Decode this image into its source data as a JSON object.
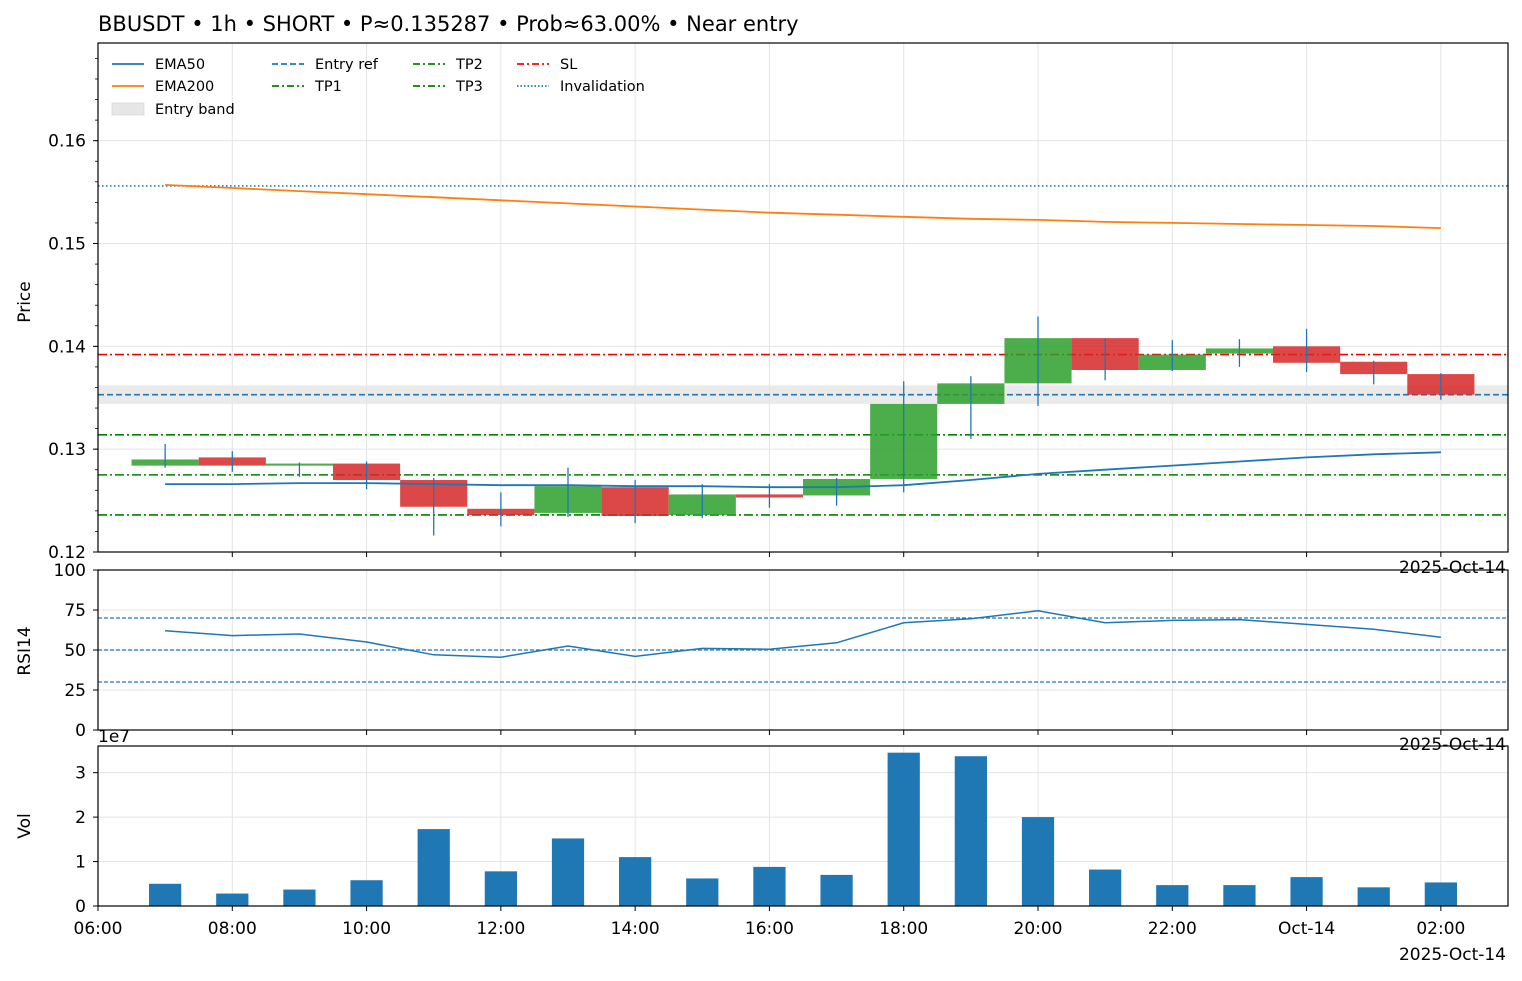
{
  "title": "BBUSDT • 1h • SHORT • P≈0.135287 • Prob≈63.00% • Near entry",
  "colors": {
    "ema50": "#1f77b4",
    "ema200": "#ff7f0e",
    "up": "#2ca02c",
    "down": "#d62728",
    "wick": "#1f77b4",
    "entry": "#1f77b4",
    "tp": "#008000",
    "sl": "#ff0000",
    "band": "#e6e6e6",
    "volume": "#1f77b4"
  },
  "chart_data": [
    {
      "panel": "price",
      "type": "candlestick",
      "ylabel": "Price",
      "ylim": [
        0.12,
        0.1695
      ],
      "yticks": [
        "0.12",
        "0.13",
        "0.14",
        "0.15",
        "0.16"
      ],
      "xlim": [
        "06:00",
        "03:00"
      ],
      "grid": true,
      "corner_label": "2025-Oct-14",
      "legend": {
        "position": "top-left",
        "entries": [
          {
            "label": "EMA50",
            "style": "solid",
            "color": "#1f77b4"
          },
          {
            "label": "Entry ref",
            "style": "dashed",
            "color": "#1f77b4"
          },
          {
            "label": "TP2",
            "style": "dashdot",
            "color": "#008000"
          },
          {
            "label": "SL",
            "style": "dashdot",
            "color": "#ff0000"
          },
          {
            "label": "EMA200",
            "style": "solid",
            "color": "#ff7f0e"
          },
          {
            "label": "TP1",
            "style": "dashdot",
            "color": "#008000"
          },
          {
            "label": "TP3",
            "style": "dashdot",
            "color": "#008000"
          },
          {
            "label": "Invalidation",
            "style": "dotted",
            "color": "#1f77b4"
          },
          {
            "label": "Entry band",
            "style": "band",
            "color": "#e6e6e6"
          }
        ]
      },
      "levels": {
        "entry_ref": 0.1353,
        "entry_band": [
          0.1344,
          0.1362
        ],
        "tp1": 0.1314,
        "tp2": 0.1275,
        "tp3": 0.1236,
        "sl": 0.1392,
        "invalidation": 0.1556
      },
      "candles": [
        {
          "t": "07:00",
          "o": 0.1284,
          "h": 0.1305,
          "l": 0.1282,
          "c": 0.129
        },
        {
          "t": "08:00",
          "o": 0.1292,
          "h": 0.1298,
          "l": 0.1278,
          "c": 0.1284
        },
        {
          "t": "09:00",
          "o": 0.1284,
          "h": 0.1287,
          "l": 0.1273,
          "c": 0.1286
        },
        {
          "t": "10:00",
          "o": 0.1286,
          "h": 0.1288,
          "l": 0.1261,
          "c": 0.127
        },
        {
          "t": "11:00",
          "o": 0.127,
          "h": 0.1272,
          "l": 0.1216,
          "c": 0.1244
        },
        {
          "t": "12:00",
          "o": 0.1242,
          "h": 0.1258,
          "l": 0.1225,
          "c": 0.1236
        },
        {
          "t": "13:00",
          "o": 0.1238,
          "h": 0.1282,
          "l": 0.1234,
          "c": 0.1264
        },
        {
          "t": "14:00",
          "o": 0.1263,
          "h": 0.127,
          "l": 0.1228,
          "c": 0.1235
        },
        {
          "t": "15:00",
          "o": 0.1236,
          "h": 0.1266,
          "l": 0.1233,
          "c": 0.1256
        },
        {
          "t": "16:00",
          "o": 0.1256,
          "h": 0.1266,
          "l": 0.1243,
          "c": 0.1253
        },
        {
          "t": "17:00",
          "o": 0.1255,
          "h": 0.1272,
          "l": 0.1245,
          "c": 0.1271
        },
        {
          "t": "18:00",
          "o": 0.1271,
          "h": 0.1366,
          "l": 0.1258,
          "c": 0.1344
        },
        {
          "t": "19:00",
          "o": 0.1344,
          "h": 0.1371,
          "l": 0.131,
          "c": 0.1364
        },
        {
          "t": "20:00",
          "o": 0.1364,
          "h": 0.1429,
          "l": 0.1342,
          "c": 0.1408
        },
        {
          "t": "21:00",
          "o": 0.1408,
          "h": 0.1408,
          "l": 0.1367,
          "c": 0.1377
        },
        {
          "t": "22:00",
          "o": 0.1377,
          "h": 0.1406,
          "l": 0.1376,
          "c": 0.1392
        },
        {
          "t": "23:00",
          "o": 0.1393,
          "h": 0.1407,
          "l": 0.138,
          "c": 0.1398
        },
        {
          "t": "00:00",
          "o": 0.14,
          "h": 0.1417,
          "l": 0.1375,
          "c": 0.1384
        },
        {
          "t": "01:00",
          "o": 0.1385,
          "h": 0.1386,
          "l": 0.1363,
          "c": 0.1373
        },
        {
          "t": "02:00",
          "o": 0.1373,
          "h": 0.1374,
          "l": 0.1348,
          "c": 0.1353
        }
      ],
      "series": [
        {
          "name": "EMA50",
          "x": [
            "07:00",
            "08:00",
            "09:00",
            "10:00",
            "11:00",
            "12:00",
            "13:00",
            "14:00",
            "15:00",
            "16:00",
            "17:00",
            "18:00",
            "19:00",
            "20:00",
            "21:00",
            "22:00",
            "23:00",
            "00:00",
            "01:00",
            "02:00"
          ],
          "values": [
            0.1266,
            0.1266,
            0.1267,
            0.1267,
            0.1266,
            0.1265,
            0.1265,
            0.1264,
            0.1264,
            0.1263,
            0.1263,
            0.1265,
            0.127,
            0.1276,
            0.128,
            0.1284,
            0.1288,
            0.1292,
            0.1295,
            0.1297
          ]
        },
        {
          "name": "EMA200",
          "x": [
            "07:00",
            "08:00",
            "09:00",
            "10:00",
            "11:00",
            "12:00",
            "13:00",
            "14:00",
            "15:00",
            "16:00",
            "17:00",
            "18:00",
            "19:00",
            "20:00",
            "21:00",
            "22:00",
            "23:00",
            "00:00",
            "01:00",
            "02:00"
          ],
          "values": [
            0.1557,
            0.1554,
            0.1551,
            0.1548,
            0.1545,
            0.1542,
            0.1539,
            0.1536,
            0.1533,
            0.153,
            0.1528,
            0.1526,
            0.1524,
            0.1523,
            0.1521,
            0.152,
            0.1519,
            0.1518,
            0.1517,
            0.1515
          ]
        }
      ]
    },
    {
      "panel": "rsi",
      "type": "line",
      "ylabel": "RSI14",
      "ylim": [
        0,
        100
      ],
      "yticks": [
        "0",
        "25",
        "50",
        "75",
        "100"
      ],
      "reference_lines": [
        30,
        50,
        70
      ],
      "corner_label": "2025-Oct-14",
      "grid": true,
      "series": [
        {
          "name": "RSI14",
          "x": [
            "07:00",
            "08:00",
            "09:00",
            "10:00",
            "11:00",
            "12:00",
            "13:00",
            "14:00",
            "15:00",
            "16:00",
            "17:00",
            "18:00",
            "19:00",
            "20:00",
            "21:00",
            "22:00",
            "23:00",
            "00:00",
            "01:00",
            "02:00"
          ],
          "values": [
            62,
            59,
            60,
            55,
            47,
            45.5,
            52.5,
            46,
            51,
            50.5,
            54.5,
            67,
            69.5,
            74.5,
            67,
            68.5,
            69,
            66,
            63,
            58
          ]
        }
      ]
    },
    {
      "panel": "volume",
      "type": "bar",
      "ylabel": "Vol",
      "ylim": [
        0,
        3.6
      ],
      "scale_label": "1e7",
      "yticks": [
        "0",
        "1",
        "2",
        "3"
      ],
      "xticks": [
        "06:00",
        "08:00",
        "10:00",
        "12:00",
        "14:00",
        "16:00",
        "18:00",
        "20:00",
        "22:00",
        "Oct-14",
        "02:00"
      ],
      "corner_label": "2025-Oct-14",
      "grid": true,
      "categories": [
        "07:00",
        "08:00",
        "09:00",
        "10:00",
        "11:00",
        "12:00",
        "13:00",
        "14:00",
        "15:00",
        "16:00",
        "17:00",
        "18:00",
        "19:00",
        "20:00",
        "21:00",
        "22:00",
        "23:00",
        "00:00",
        "01:00",
        "02:00"
      ],
      "values": [
        0.5,
        0.28,
        0.37,
        0.58,
        1.73,
        0.78,
        1.52,
        1.1,
        0.62,
        0.88,
        0.7,
        3.45,
        3.37,
        2.0,
        0.82,
        0.47,
        0.47,
        0.65,
        0.42,
        0.53
      ]
    }
  ]
}
